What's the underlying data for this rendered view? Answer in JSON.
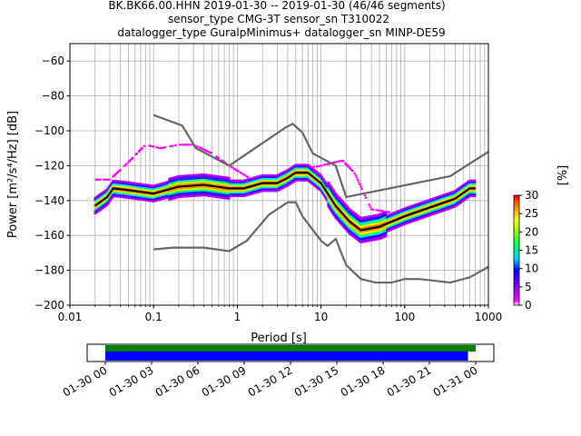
{
  "chart_data": {
    "type": "heatmap",
    "title_lines": [
      "BK.BK66.00.HHN   2019-01-30 -- 2019-01-30  (46/46 segments)",
      "sensor_type CMG-3T sensor_sn T310022",
      "datalogger_type GuralpMinimus+ datalogger_sn MINP-DE59"
    ],
    "xlabel": "Period [s]",
    "ylabel": "Power [m²/s⁴/Hz] [dB]",
    "xscale": "log",
    "xlim": [
      0.01,
      1000
    ],
    "ylim": [
      -200,
      -50
    ],
    "xticks": [
      {
        "v": 0.01,
        "l": "0.01"
      },
      {
        "v": 0.1,
        "l": "0.1"
      },
      {
        "v": 1,
        "l": "1"
      },
      {
        "v": 10,
        "l": "10"
      },
      {
        "v": 100,
        "l": "100"
      },
      {
        "v": 1000,
        "l": "1000"
      }
    ],
    "yticks": [
      {
        "v": -60,
        "l": "−60"
      },
      {
        "v": -80,
        "l": "−80"
      },
      {
        "v": -100,
        "l": "−100"
      },
      {
        "v": -120,
        "l": "−120"
      },
      {
        "v": -140,
        "l": "−140"
      },
      {
        "v": -160,
        "l": "−160"
      },
      {
        "v": -180,
        "l": "−180"
      },
      {
        "v": -200,
        "l": "−200"
      }
    ],
    "grid": true,
    "colorbar": {
      "label": "[%]",
      "range": [
        0,
        30
      ],
      "ticks": [
        {
          "v": 0,
          "l": "0"
        },
        {
          "v": 5,
          "l": "5"
        },
        {
          "v": 10,
          "l": "10"
        },
        {
          "v": 15,
          "l": "15"
        },
        {
          "v": 20,
          "l": "20"
        },
        {
          "v": 25,
          "l": "25"
        },
        {
          "v": 30,
          "l": "30"
        }
      ]
    },
    "nhnm": [
      [
        0.1,
        -91
      ],
      [
        0.22,
        -97
      ],
      [
        0.32,
        -110
      ],
      [
        0.8,
        -120
      ],
      [
        3.8,
        -98
      ],
      [
        4.6,
        -96
      ],
      [
        6,
        -101
      ],
      [
        8,
        -113
      ],
      [
        15,
        -120
      ],
      [
        20,
        -138
      ],
      [
        350,
        -126
      ],
      [
        1000,
        -112
      ]
    ],
    "nlnm": [
      [
        0.1,
        -168
      ],
      [
        0.17,
        -167
      ],
      [
        0.4,
        -167
      ],
      [
        0.8,
        -169
      ],
      [
        1.3,
        -163
      ],
      [
        2.4,
        -148
      ],
      [
        4,
        -141
      ],
      [
        5,
        -141
      ],
      [
        6,
        -149
      ],
      [
        10,
        -163
      ],
      [
        12,
        -166
      ],
      [
        15,
        -162
      ],
      [
        20,
        -177
      ],
      [
        30,
        -185
      ],
      [
        45,
        -187
      ],
      [
        70,
        -187
      ],
      [
        100,
        -185
      ],
      [
        150,
        -185
      ],
      [
        350,
        -187
      ],
      [
        600,
        -184
      ],
      [
        1000,
        -178
      ]
    ],
    "mean": [
      [
        0.02,
        -143
      ],
      [
        0.028,
        -138
      ],
      [
        0.033,
        -133
      ],
      [
        0.05,
        -134
      ],
      [
        0.1,
        -136
      ],
      [
        0.2,
        -132
      ],
      [
        0.4,
        -131
      ],
      [
        0.8,
        -133
      ],
      [
        1.2,
        -133
      ],
      [
        2,
        -130
      ],
      [
        3,
        -130
      ],
      [
        4,
        -127
      ],
      [
        5,
        -124
      ],
      [
        7,
        -124
      ],
      [
        10,
        -130
      ],
      [
        15,
        -143
      ],
      [
        22,
        -152
      ],
      [
        30,
        -157
      ],
      [
        50,
        -155
      ],
      [
        100,
        -149
      ],
      [
        200,
        -144
      ],
      [
        400,
        -139
      ],
      [
        600,
        -133
      ],
      [
        700,
        -133
      ]
    ],
    "upper_outliers": [
      [
        0.03,
        -128
      ],
      [
        0.05,
        -118
      ],
      [
        0.08,
        -108
      ],
      [
        0.12,
        -110
      ],
      [
        0.2,
        -108
      ],
      [
        0.3,
        -108
      ],
      [
        0.5,
        -113
      ],
      [
        0.8,
        -120
      ],
      [
        1.5,
        -128
      ],
      [
        3,
        -128
      ],
      [
        6,
        -122
      ],
      [
        10,
        -120
      ],
      [
        18,
        -117
      ],
      [
        25,
        -124
      ],
      [
        40,
        -145
      ],
      [
        100,
        -148
      ],
      [
        700,
        -131
      ]
    ],
    "timeline": {
      "xticks": [
        "01-30 00",
        "01-30 03",
        "01-30 06",
        "01-30 09",
        "01-30 12",
        "01-30 15",
        "01-30 18",
        "01-30 21",
        "01-31 00"
      ],
      "green_coverage_hours": [
        0,
        24
      ],
      "blue_coverage_hours": [
        0,
        23.5
      ],
      "colors": {
        "green": "#008000",
        "blue": "#0000ff"
      }
    }
  }
}
